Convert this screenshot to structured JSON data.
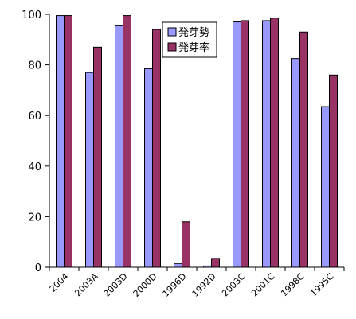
{
  "chart_data": {
    "type": "bar",
    "categories": [
      "2004",
      "2003A",
      "2003D",
      "2000D",
      "1996D",
      "1992D",
      "2003C",
      "2001C",
      "1998C",
      "1995C"
    ],
    "series": [
      {
        "name": "発芽勢",
        "values": [
          99.5,
          77,
          95.5,
          78.5,
          1.5,
          0.5,
          97,
          97.5,
          82.5,
          63.5
        ]
      },
      {
        "name": "発芽率",
        "values": [
          99.5,
          87,
          99.5,
          94,
          18,
          3.5,
          97.5,
          98.5,
          93,
          76
        ]
      }
    ],
    "ylim": [
      0,
      100
    ],
    "yticks": [
      0,
      20,
      40,
      60,
      80,
      100
    ],
    "title": "",
    "xlabel": "",
    "ylabel": "",
    "grid": false,
    "legend_position": "top-center",
    "colors": [
      "#9999ff",
      "#993366"
    ]
  }
}
